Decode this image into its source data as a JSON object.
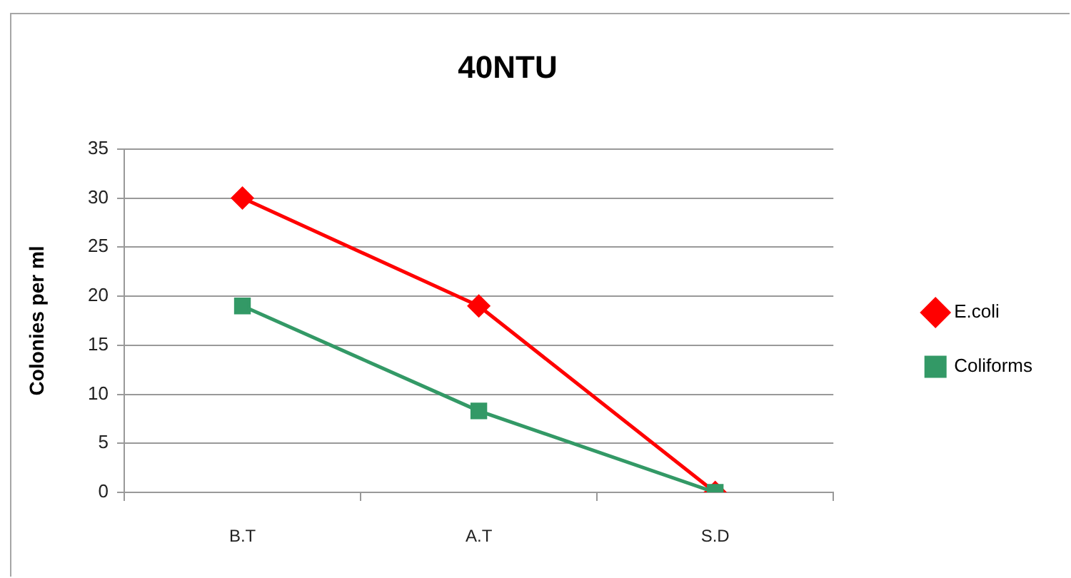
{
  "chart_data": {
    "type": "line",
    "title": "40NTU",
    "ylabel": "Colonies per ml",
    "categories": [
      "B.T",
      "A.T",
      "S.D"
    ],
    "series": [
      {
        "name": "E.coli",
        "color": "#ff0000",
        "marker": "diamond",
        "values": [
          30,
          19,
          0
        ]
      },
      {
        "name": "Coliforms",
        "color": "#339966",
        "marker": "square",
        "values": [
          19,
          8.3,
          0
        ]
      }
    ],
    "ylim": [
      0,
      35
    ],
    "yticks": [
      0,
      5,
      10,
      15,
      20,
      25,
      30,
      35
    ],
    "grid": "y",
    "legend": "right"
  }
}
